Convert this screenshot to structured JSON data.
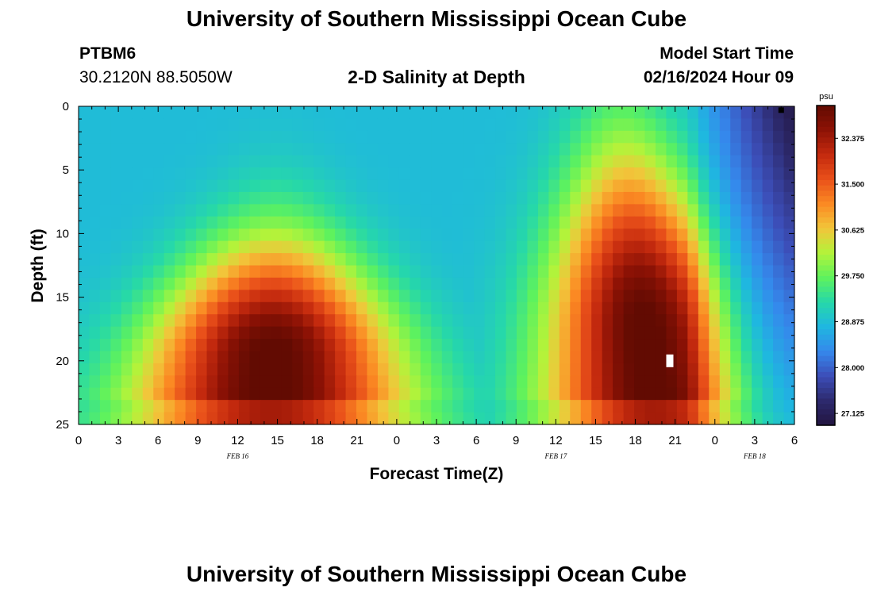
{
  "header": {
    "title": "University of Southern Mississippi Ocean Cube",
    "station_id": "PTBM6",
    "coordinates": "30.2120N  88.5050W",
    "subtitle": "2-D Salinity at Depth",
    "model_start_label": "Model Start Time",
    "model_start_value": "02/16/2024 Hour 09"
  },
  "footer": {
    "title": "University of Southern Mississippi Ocean Cube"
  },
  "colors": {
    "colormap": [
      "#221540",
      "#2d2a6e",
      "#3c4eb8",
      "#3588ec",
      "#1fb7e0",
      "#26d8a9",
      "#5ef25d",
      "#b3f33a",
      "#f2c53a",
      "#fb8a23",
      "#e9501a",
      "#c42a0e",
      "#8d1205",
      "#620b02"
    ],
    "missing_fill": "#ffffff",
    "missing_marker_dark": "#000000"
  },
  "chart_data": {
    "type": "heatmap",
    "title": "2-D Salinity at Depth",
    "xlabel": "Forecast Time(Z)",
    "ylabel": "Depth (ft)",
    "x_range_hours": [
      0,
      54
    ],
    "x_tick_hours": [
      0,
      3,
      6,
      9,
      12,
      15,
      18,
      21,
      24,
      27,
      30,
      33,
      36,
      39,
      42,
      45,
      48,
      51,
      54
    ],
    "x_tick_labels": [
      "0",
      "3",
      "6",
      "9",
      "12",
      "15",
      "18",
      "21",
      "0",
      "3",
      "6",
      "9",
      "12",
      "15",
      "18",
      "21",
      "0",
      "3",
      "6"
    ],
    "x_minor_step_hours": 1,
    "day_labels": [
      {
        "text": "FEB 16",
        "hour": 12
      },
      {
        "text": "FEB 17",
        "hour": 36
      },
      {
        "text": "FEB 18",
        "hour": 51
      }
    ],
    "ylim": [
      0,
      25
    ],
    "y_ticks": [
      0,
      5,
      10,
      15,
      20,
      25
    ],
    "y_minor_step": 1,
    "depth_levels": 26,
    "colorbar": {
      "unit": "psu",
      "vmin": 26.9,
      "vmax": 33.0,
      "ticks": [
        "32.375",
        "31.500",
        "30.625",
        "29.750",
        "28.875",
        "28.000",
        "27.125"
      ]
    },
    "field_model": {
      "background_psu": 28.85,
      "surface_low_psu": 28.25,
      "dome_peak_psu": 33.1,
      "plumes": [
        {
          "hour_at_surface": 15,
          "hour_at_bottom": 14.5,
          "core_depth_ft": 20,
          "top_depth_ft": 5.5,
          "halfwidth_surface_h": 2.4,
          "halfwidth_bottom_h": 7.5
        },
        {
          "hour_at_surface": 41,
          "hour_at_bottom": 43.5,
          "core_depth_ft": 18,
          "top_depth_ft": -4,
          "halfwidth_surface_h": 3.0,
          "halfwidth_bottom_h": 5.8
        }
      ],
      "fresh_end": {
        "start_hour": 46,
        "end_hour": 54,
        "min_psu": 27.0
      }
    },
    "annotations": [
      {
        "type": "missing-cell",
        "hour": 44.6,
        "depth_ft": 20,
        "color": "white"
      },
      {
        "type": "missing-cell",
        "hour": 53.0,
        "depth_ft": 0.3,
        "color": "black"
      }
    ]
  }
}
